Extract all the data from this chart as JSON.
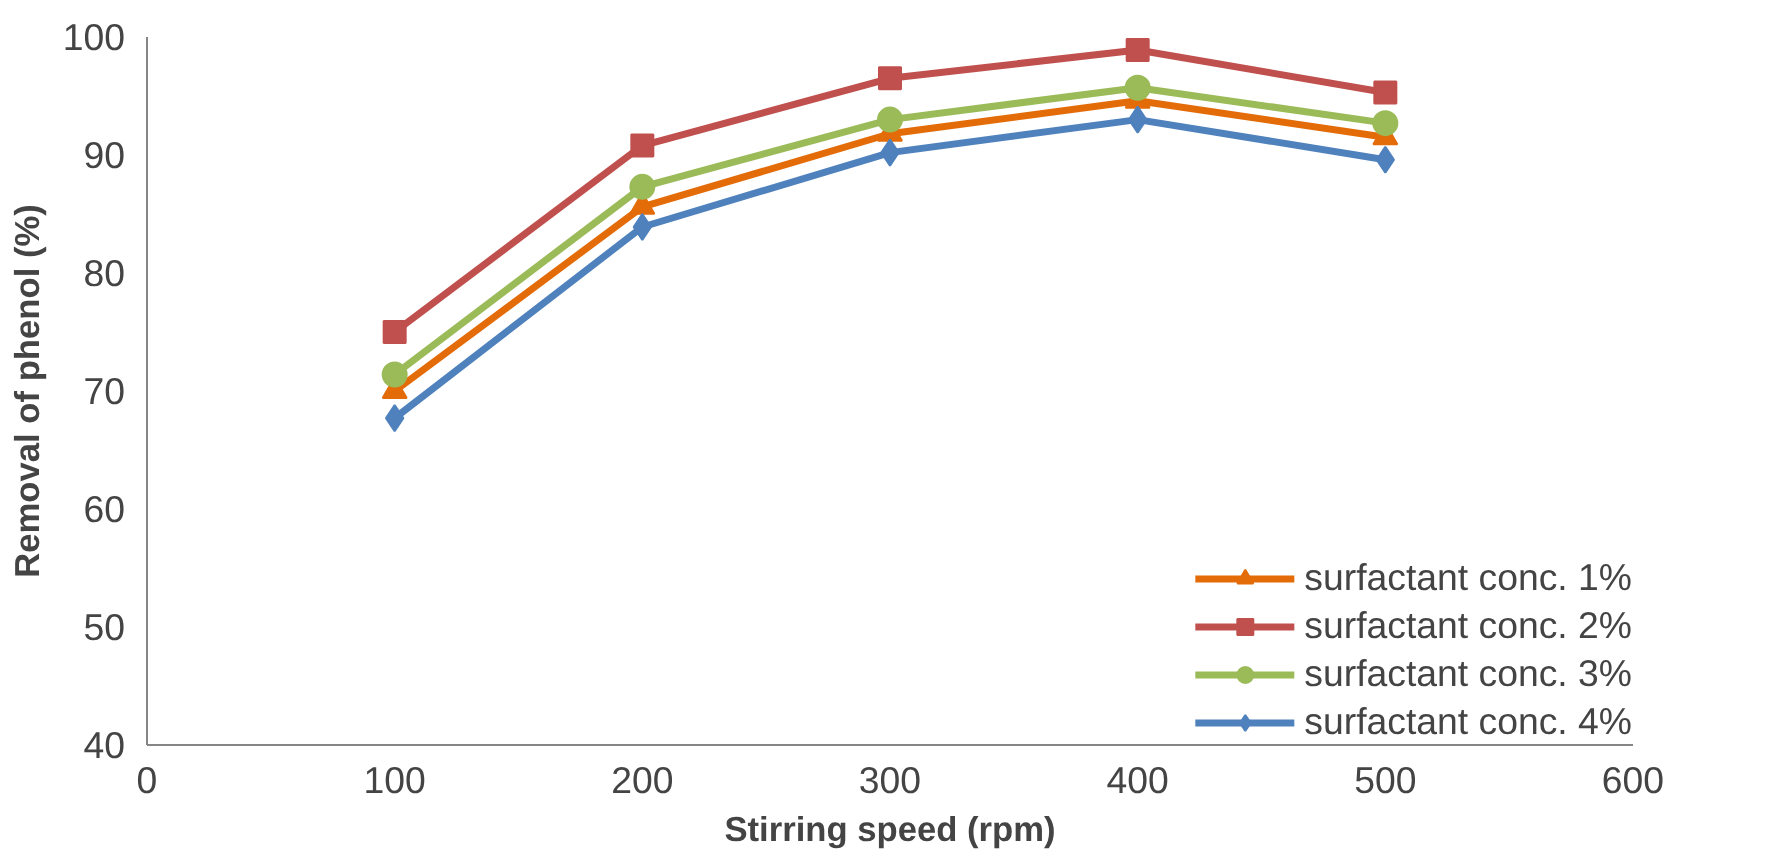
{
  "chart_data": {
    "type": "line",
    "xlabel": "Stirring speed (rpm)",
    "ylabel": "Removal of phenol (%)",
    "x": [
      100,
      200,
      300,
      400,
      500
    ],
    "series": [
      {
        "name": "surfactant conc. 1%",
        "color": "#e36c09",
        "marker": "triangle",
        "values": [
          70.0,
          85.6,
          91.8,
          94.6,
          91.5
        ]
      },
      {
        "name": "surfactant conc. 2%",
        "color": "#c0504d",
        "marker": "square",
        "values": [
          75.0,
          90.8,
          96.5,
          98.9,
          95.3
        ]
      },
      {
        "name": "surfactant conc. 3%",
        "color": "#9bbb59",
        "marker": "circle",
        "values": [
          71.4,
          87.3,
          93.0,
          95.7,
          92.7
        ]
      },
      {
        "name": "surfactant conc. 4%",
        "color": "#4f81bd",
        "marker": "diamond",
        "values": [
          67.7,
          83.9,
          90.2,
          93.0,
          89.6
        ]
      }
    ],
    "xlim": [
      0,
      600
    ],
    "xticks": [
      0,
      100,
      200,
      300,
      400,
      500,
      600
    ],
    "ylim": [
      40,
      100
    ],
    "yticks": [
      40,
      50,
      60,
      70,
      80,
      90,
      100
    ],
    "grid": false,
    "legend": "bottom right",
    "line_style": "solid"
  }
}
